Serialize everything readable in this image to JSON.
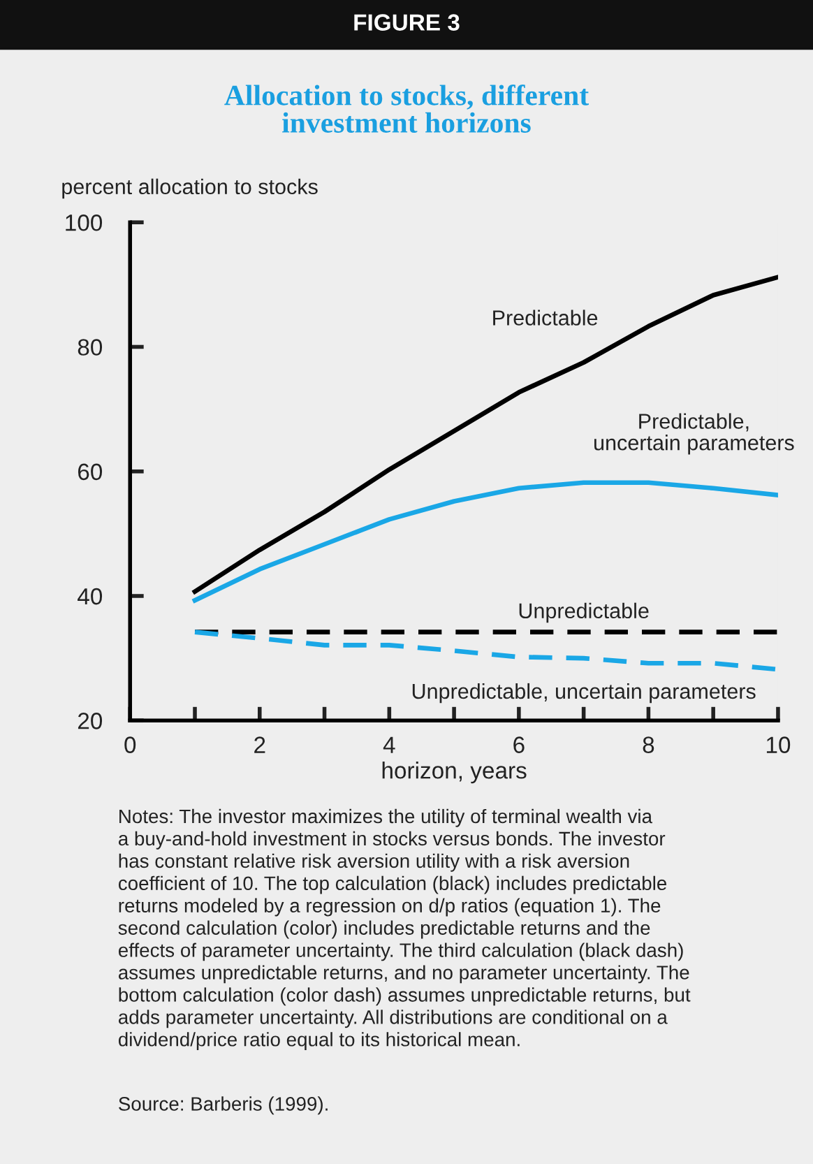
{
  "chart_data": {
    "type": "line",
    "title": "FIGURE 3",
    "subtitle": "Allocation to stocks, different\ninvestment horizons",
    "ylabel": "percent allocation to stocks",
    "xlabel": "horizon, years",
    "x": [
      1,
      2,
      3,
      4,
      5,
      6,
      7,
      8,
      9,
      10
    ],
    "series": [
      {
        "name": "Predictable",
        "color": "#000000",
        "line_style": "solid",
        "values": [
          40.7,
          47.4,
          53.5,
          60.3,
          66.5,
          72.7,
          77.5,
          83.3,
          88.3,
          91.2
        ]
      },
      {
        "name": "Predictable, uncertain parameters",
        "color": "#1aa7e6",
        "line_style": "solid",
        "values": [
          39.3,
          44.3,
          48.3,
          52.3,
          55.2,
          57.3,
          58.2,
          58.2,
          57.3,
          56.2
        ]
      },
      {
        "name": "Unpredictable",
        "color": "#000000",
        "line_style": "dashed",
        "values": [
          34.2,
          34.2,
          34.2,
          34.2,
          34.2,
          34.2,
          34.2,
          34.2,
          34.2,
          34.2
        ]
      },
      {
        "name": "Unpredictable, uncertain parameters",
        "color": "#1aa7e6",
        "line_style": "dashed",
        "values": [
          34.2,
          33.2,
          32.1,
          32.1,
          31.2,
          30.2,
          30.0,
          29.2,
          29.2,
          28.2
        ]
      }
    ],
    "xlim": [
      0,
      10
    ],
    "ylim": [
      20,
      100
    ],
    "xticks": [
      0,
      {
        "value": 1,
        "label": null
      },
      2,
      {
        "value": 3,
        "label": null
      },
      4,
      {
        "value": 5,
        "label": null
      },
      6,
      {
        "value": 7,
        "label": null
      },
      8,
      {
        "value": 9,
        "label": null
      },
      10
    ],
    "yticks": [
      20,
      40,
      60,
      80,
      100
    ],
    "grid": false,
    "legend": false,
    "marker": "none",
    "annotations": [
      "Notes: The investor maximizes the utility of terminal wealth via\na buy-and-hold investment in stocks versus bonds. The investor\nhas constant relative risk aversion utility with a risk aversion\ncoefficient of 10. The top calculation (black) includes predictable\nreturns modeled by a regression on d/p ratios (equation 1). The\nsecond calculation (color) includes predictable returns and the\neffects of parameter uncertainty. The third calculation (black dash)\nassumes unpredictable returns, and no parameter uncertainty. The\nbottom calculation (color dash) assumes unpredictable returns, but\nadds parameter uncertainty. All distributions are conditional on a\ndividend/price ratio equal to its historical mean.",
      "Source: Barberis (1999)."
    ]
  }
}
